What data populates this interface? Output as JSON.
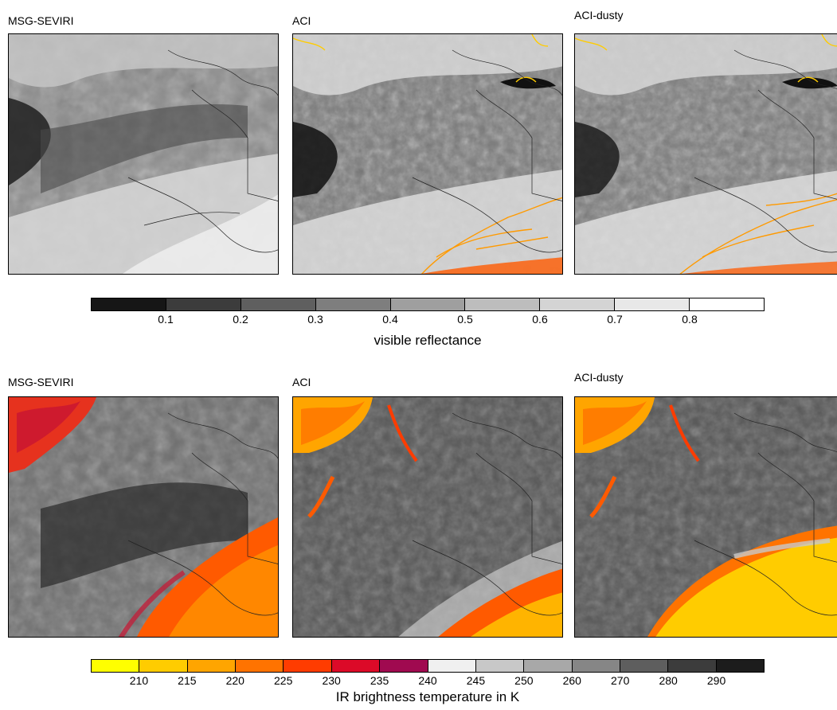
{
  "top_row": {
    "titles": [
      "MSG-SEVIRI",
      "ACI",
      "ACI-dusty"
    ],
    "colorbar": {
      "label": "visible reflectance",
      "ticks": [
        "0.1",
        "0.2",
        "0.3",
        "0.4",
        "0.5",
        "0.6",
        "0.7",
        "0.8"
      ],
      "colors": [
        "#161616",
        "#3c3c3c",
        "#5f5f5f",
        "#7e7e7e",
        "#9f9f9f",
        "#bdbdbd",
        "#d4d4d4",
        "#e8e8e8",
        "#ffffff"
      ]
    }
  },
  "bottom_row": {
    "titles": [
      "MSG-SEVIRI",
      "ACI",
      "ACI-dusty"
    ],
    "colorbar": {
      "label": "IR brightness temperature in K",
      "ticks": [
        "210",
        "215",
        "220",
        "225",
        "230",
        "235",
        "240",
        "245",
        "250",
        "260",
        "270",
        "280",
        "290"
      ],
      "colors": [
        "#ffff00",
        "#ffcc00",
        "#ffa500",
        "#ff7300",
        "#ff3c00",
        "#dc0a28",
        "#a00a50",
        "#f0f0f0",
        "#c8c8c8",
        "#a8a8a8",
        "#868686",
        "#5e5e5e",
        "#3c3c3c",
        "#1c1c1c"
      ]
    }
  }
}
